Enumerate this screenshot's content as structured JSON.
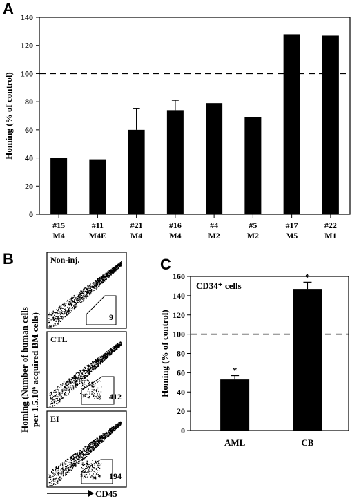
{
  "panels": {
    "a": "A",
    "b": "B",
    "c": "C"
  },
  "chart_data": [
    {
      "type": "bar",
      "panel": "A",
      "categories": [
        [
          "#15",
          "M4"
        ],
        [
          "#11",
          "M4E"
        ],
        [
          "#21",
          "M4"
        ],
        [
          "#16",
          "M4"
        ],
        [
          "#4",
          "M2"
        ],
        [
          "#5",
          "M2"
        ],
        [
          "#17",
          "M5"
        ],
        [
          "#22",
          "M1"
        ]
      ],
      "values": [
        40,
        39,
        60,
        74,
        79,
        69,
        128,
        127
      ],
      "errors": [
        0,
        0,
        15,
        7,
        0,
        0,
        0,
        0
      ],
      "ylabel": "Homing (% of control)",
      "ylim": [
        0,
        140
      ],
      "yticks": [
        0,
        20,
        40,
        60,
        80,
        100,
        120,
        140
      ],
      "reference_line": 100
    },
    {
      "type": "scatter",
      "panel": "B",
      "ylabel": "Homing (Number of human cells per 1.5.10⁶ acquired BM cells)",
      "xlabel": "CD45",
      "plots": [
        {
          "label": "Non-inj.",
          "gate_count": "9"
        },
        {
          "label": "CTL",
          "gate_count": "412"
        },
        {
          "label": "EI",
          "gate_count": "194"
        }
      ]
    },
    {
      "type": "bar",
      "panel": "C",
      "title": "CD34⁺ cells",
      "categories": [
        "AML",
        "CB"
      ],
      "values": [
        53,
        147
      ],
      "errors": [
        4,
        7
      ],
      "significance": [
        "*",
        "*"
      ],
      "ylabel": "Homing (% of control)",
      "ylim": [
        0,
        160
      ],
      "yticks": [
        0,
        20,
        40,
        60,
        80,
        100,
        120,
        140,
        160
      ],
      "reference_line": 100
    }
  ]
}
